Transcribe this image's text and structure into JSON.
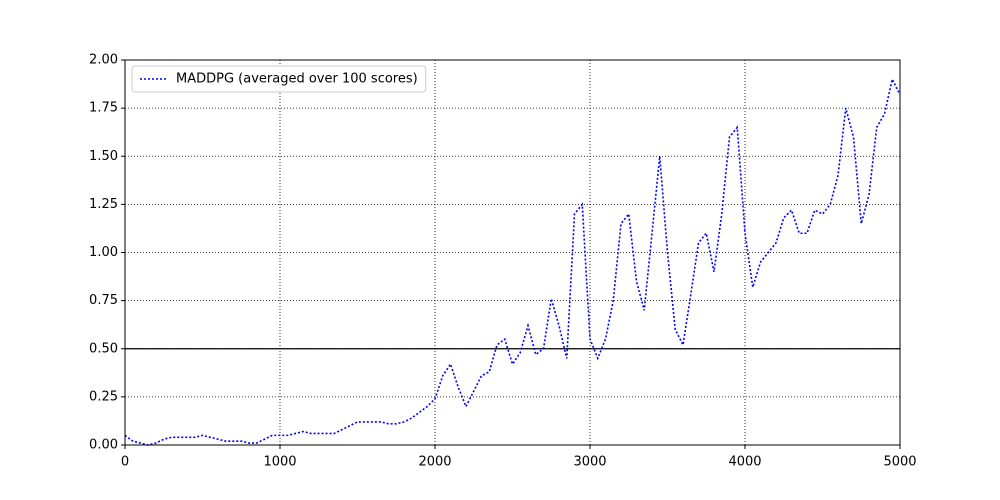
{
  "chart_data": {
    "type": "line",
    "x": [
      0,
      50,
      100,
      150,
      200,
      250,
      300,
      350,
      400,
      450,
      500,
      550,
      600,
      650,
      700,
      750,
      800,
      850,
      900,
      950,
      1000,
      1050,
      1100,
      1150,
      1200,
      1250,
      1300,
      1350,
      1400,
      1450,
      1500,
      1550,
      1600,
      1650,
      1700,
      1750,
      1800,
      1850,
      1900,
      1950,
      2000,
      2050,
      2100,
      2150,
      2200,
      2250,
      2300,
      2350,
      2400,
      2450,
      2500,
      2550,
      2600,
      2650,
      2700,
      2750,
      2800,
      2850,
      2900,
      2950,
      3000,
      3050,
      3100,
      3150,
      3200,
      3250,
      3300,
      3350,
      3400,
      3450,
      3500,
      3550,
      3600,
      3650,
      3700,
      3750,
      3800,
      3850,
      3900,
      3950,
      4000,
      4050,
      4100,
      4150,
      4200,
      4250,
      4300,
      4350,
      4400,
      4450,
      4500,
      4550,
      4600,
      4650,
      4700,
      4750,
      4800,
      4850,
      4900,
      4950,
      5000
    ],
    "series": [
      {
        "name": "MADDPG (averaged over 100 scores)",
        "color": "#0000ff",
        "values": [
          0.05,
          0.02,
          0.01,
          0.0,
          0.01,
          0.03,
          0.04,
          0.04,
          0.04,
          0.04,
          0.05,
          0.04,
          0.03,
          0.02,
          0.02,
          0.02,
          0.01,
          0.01,
          0.03,
          0.05,
          0.05,
          0.05,
          0.06,
          0.07,
          0.06,
          0.06,
          0.06,
          0.06,
          0.08,
          0.1,
          0.12,
          0.12,
          0.12,
          0.12,
          0.11,
          0.11,
          0.12,
          0.14,
          0.17,
          0.2,
          0.24,
          0.36,
          0.42,
          0.3,
          0.2,
          0.28,
          0.36,
          0.38,
          0.52,
          0.55,
          0.42,
          0.48,
          0.62,
          0.47,
          0.5,
          0.76,
          0.62,
          0.45,
          1.2,
          1.25,
          0.55,
          0.45,
          0.55,
          0.75,
          1.15,
          1.2,
          0.85,
          0.7,
          1.1,
          1.5,
          1.0,
          0.6,
          0.52,
          0.78,
          1.05,
          1.1,
          0.9,
          1.2,
          1.6,
          1.65,
          1.1,
          0.82,
          0.95,
          1.0,
          1.05,
          1.18,
          1.22,
          1.1,
          1.1,
          1.22,
          1.2,
          1.25,
          1.4,
          1.75,
          1.6,
          1.15,
          1.3,
          1.65,
          1.72,
          1.9,
          1.82
        ]
      }
    ],
    "xlim": [
      0,
      5000
    ],
    "xticks": [
      0,
      1000,
      2000,
      3000,
      4000,
      5000
    ],
    "ylim": [
      0,
      2
    ],
    "yticks": [
      {
        "value": 0,
        "label": "0.00"
      },
      {
        "value": 0.25,
        "label": "0.25"
      },
      {
        "value": 0.5,
        "label": "0.50"
      },
      {
        "value": 0.75,
        "label": "0.75"
      },
      {
        "value": 1,
        "label": "1.00"
      },
      {
        "value": 1.25,
        "label": "1.25"
      },
      {
        "value": 1.5,
        "label": "1.50"
      },
      {
        "value": 1.75,
        "label": "1.75"
      },
      {
        "value": 2,
        "label": "2.00"
      }
    ],
    "grid": true,
    "legend": "upper left",
    "reference_line": {
      "value": 0.5,
      "color": "#000000"
    }
  }
}
